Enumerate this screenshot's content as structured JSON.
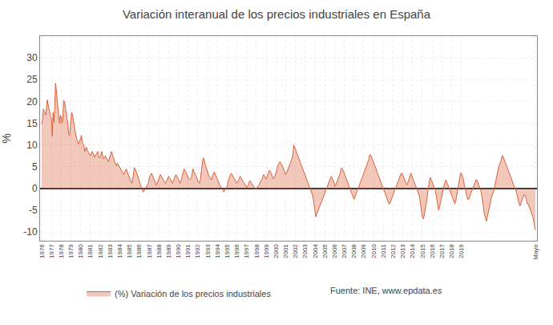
{
  "chart_data": {
    "type": "area",
    "title": "Variación interanual de los precios industriales en España",
    "ylabel": "%",
    "annotations": [
      "Fuente: INE, www.epdata.es"
    ],
    "ylim": [
      -12,
      35
    ],
    "yticks": [
      -10,
      -5,
      0,
      5,
      10,
      15,
      20,
      25,
      30
    ],
    "grid": true,
    "legend": "bottom",
    "categories": [
      "1976",
      null,
      null,
      null,
      null,
      null,
      null,
      null,
      null,
      null,
      null,
      null,
      "1977",
      null,
      null,
      null,
      null,
      null,
      null,
      null,
      null,
      null,
      null,
      null,
      "1978",
      null,
      null,
      null,
      null,
      null,
      null,
      null,
      null,
      null,
      null,
      null,
      "1979",
      null,
      null,
      null,
      null,
      null,
      null,
      null,
      null,
      null,
      null,
      null,
      "1980",
      null,
      null,
      null,
      null,
      null,
      null,
      null,
      null,
      null,
      null,
      null,
      "1981",
      null,
      null,
      null,
      null,
      null,
      null,
      null,
      null,
      null,
      null,
      null,
      "1982",
      null,
      null,
      null,
      null,
      null,
      null,
      null,
      null,
      null,
      null,
      null,
      "1983",
      null,
      null,
      null,
      null,
      null,
      null,
      null,
      null,
      null,
      null,
      null,
      "1984",
      null,
      null,
      null,
      null,
      null,
      null,
      null,
      null,
      null,
      null,
      null,
      "1985",
      null,
      null,
      null,
      null,
      null,
      null,
      null,
      null,
      null,
      null,
      null,
      "1986",
      null,
      null,
      null,
      null,
      null,
      null,
      null,
      null,
      null,
      null,
      null,
      "1987",
      null,
      null,
      null,
      null,
      null,
      null,
      null,
      null,
      null,
      null,
      null,
      "1988",
      null,
      null,
      null,
      null,
      null,
      null,
      null,
      null,
      null,
      null,
      null,
      "1989",
      null,
      null,
      null,
      null,
      null,
      null,
      null,
      null,
      null,
      null,
      null,
      "1990",
      null,
      null,
      null,
      null,
      null,
      null,
      null,
      null,
      null,
      null,
      null,
      "1991",
      null,
      null,
      null,
      null,
      null,
      null,
      null,
      null,
      null,
      null,
      null,
      "1992",
      null,
      null,
      null,
      null,
      null,
      null,
      null,
      null,
      null,
      null,
      null,
      "1993",
      null,
      null,
      null,
      null,
      null,
      null,
      null,
      null,
      null,
      null,
      null,
      "1994",
      null,
      null,
      null,
      null,
      null,
      null,
      null,
      null,
      null,
      null,
      null,
      "1995",
      null,
      null,
      null,
      null,
      null,
      null,
      null,
      null,
      null,
      null,
      null,
      "1996",
      null,
      null,
      null,
      null,
      null,
      null,
      null,
      null,
      null,
      null,
      null,
      "1997",
      null,
      null,
      null,
      null,
      null,
      null,
      null,
      null,
      null,
      null,
      null,
      "1998",
      null,
      null,
      null,
      null,
      null,
      null,
      null,
      null,
      null,
      null,
      null,
      "1999",
      null,
      null,
      null,
      null,
      null,
      null,
      null,
      null,
      null,
      null,
      null,
      "2000",
      null,
      null,
      null,
      null,
      null,
      null,
      null,
      null,
      null,
      null,
      null,
      "2001",
      null,
      null,
      null,
      null,
      null,
      null,
      null,
      null,
      null,
      null,
      null,
      "2002",
      null,
      null,
      null,
      null,
      null,
      null,
      null,
      null,
      null,
      null,
      null,
      "2003",
      null,
      null,
      null,
      null,
      null,
      null,
      null,
      null,
      null,
      null,
      null,
      "2004",
      null,
      null,
      null,
      null,
      null,
      null,
      null,
      null,
      null,
      null,
      null,
      "2005",
      null,
      null,
      null,
      null,
      null,
      null,
      null,
      null,
      null,
      null,
      null,
      "2006",
      null,
      null,
      null,
      null,
      null,
      null,
      null,
      null,
      null,
      null,
      null,
      "2007",
      null,
      null,
      null,
      null,
      null,
      null,
      null,
      null,
      null,
      null,
      null,
      "2008",
      null,
      null,
      null,
      null,
      null,
      null,
      null,
      null,
      null,
      null,
      null,
      "2009",
      null,
      null,
      null,
      null,
      null,
      null,
      null,
      null,
      null,
      null,
      null,
      "2010",
      null,
      null,
      null,
      null,
      null,
      null,
      null,
      null,
      null,
      null,
      null,
      "2011",
      null,
      null,
      null,
      null,
      null,
      null,
      null,
      null,
      null,
      null,
      null,
      "2012",
      null,
      null,
      null,
      null,
      null,
      null,
      null,
      null,
      null,
      null,
      null,
      "2013",
      null,
      null,
      null,
      null,
      null,
      null,
      null,
      null,
      null,
      null,
      null,
      "2014",
      null,
      null,
      null,
      null,
      null,
      null,
      null,
      null,
      null,
      null,
      null,
      "2015",
      null,
      null,
      null,
      null,
      null,
      null,
      null,
      null,
      null,
      null,
      null,
      "2016",
      null,
      null,
      null,
      null,
      null,
      null,
      null,
      null,
      null,
      null,
      null,
      "2017",
      null,
      null,
      null,
      null,
      null,
      null,
      null,
      null,
      null,
      null,
      null,
      "2018",
      null,
      null,
      null,
      null,
      null,
      null,
      null,
      null,
      null,
      null,
      null,
      "2019",
      null,
      null,
      null,
      null,
      null,
      null,
      null,
      null,
      null,
      null,
      null,
      null,
      null,
      null,
      null,
      null,
      null,
      null,
      null,
      null,
      null,
      null,
      null,
      null,
      null,
      null,
      null,
      null,
      null,
      null,
      null,
      null,
      null,
      null,
      null,
      null,
      null,
      null,
      null,
      null,
      null,
      null,
      null,
      null,
      null,
      null,
      null,
      null,
      null,
      null,
      null,
      null,
      null,
      null,
      null,
      null,
      null,
      null,
      null,
      null,
      null,
      null,
      null,
      null,
      null,
      null,
      null,
      null,
      null,
      null,
      null,
      null,
      null,
      null,
      null,
      null,
      null,
      null,
      null,
      null,
      null,
      null,
      null,
      null,
      null,
      null,
      null,
      null,
      null,
      null,
      "Mayo"
    ],
    "series": [
      {
        "name": "(%) Variación de los precios industriales",
        "color": "#d9603a",
        "values": [
          14.8,
          15.6,
          18.2,
          17.5,
          17.3,
          16.9,
          18.8,
          20.4,
          19.2,
          18.1,
          17.0,
          16.5,
          16.0,
          12.0,
          17.5,
          15.2,
          18.2,
          24.2,
          22.5,
          20.1,
          18.0,
          16.5,
          15.0,
          16.8,
          16.5,
          15.0,
          16.0,
          20.2,
          20.0,
          18.5,
          16.8,
          16.3,
          15.2,
          12.8,
          12.2,
          13.5,
          16.5,
          17.5,
          16.8,
          15.2,
          14.5,
          13.2,
          12.0,
          11.5,
          10.8,
          10.2,
          10.5,
          11.0,
          11.5,
          12.2,
          10.5,
          10.0,
          9.8,
          8.5,
          9.0,
          9.5,
          8.8,
          8.5,
          8.2,
          7.8,
          7.5,
          8.0,
          8.5,
          8.2,
          7.8,
          7.2,
          7.5,
          7.8,
          8.2,
          8.5,
          7.5,
          7.0,
          7.2,
          8.0,
          8.5,
          7.5,
          6.8,
          7.0,
          7.5,
          7.2,
          6.8,
          6.5,
          6.2,
          6.8,
          7.5,
          8.0,
          8.5,
          7.8,
          7.2,
          6.5,
          6.0,
          5.5,
          5.2,
          5.8,
          5.5,
          5.2,
          5.0,
          4.5,
          4.2,
          3.8,
          3.5,
          3.2,
          3.8,
          4.2,
          4.5,
          4.0,
          3.5,
          2.8,
          2.5,
          2.0,
          1.5,
          1.2,
          2.5,
          3.5,
          4.8,
          4.5,
          4.0,
          3.5,
          2.8,
          2.2,
          1.8,
          1.2,
          0.5,
          -0.2,
          -0.5,
          -0.8,
          -0.5,
          -0.2,
          0.2,
          0.5,
          0.8,
          1.2,
          2.2,
          2.8,
          3.2,
          3.5,
          3.0,
          2.5,
          2.0,
          1.5,
          1.0,
          0.8,
          1.2,
          1.8,
          2.2,
          2.8,
          3.2,
          2.8,
          2.5,
          2.2,
          1.8,
          1.5,
          1.2,
          1.5,
          2.0,
          2.5,
          2.8,
          2.5,
          2.2,
          1.8,
          1.5,
          1.2,
          1.8,
          2.2,
          2.8,
          3.2,
          2.8,
          2.5,
          2.2,
          1.8,
          1.2,
          1.5,
          2.2,
          3.0,
          3.5,
          4.5,
          4.2,
          3.8,
          3.2,
          2.8,
          2.5,
          2.2,
          2.0,
          2.2,
          2.5,
          3.5,
          4.5,
          4.0,
          3.5,
          3.0,
          2.5,
          2.0,
          1.8,
          1.5,
          1.2,
          2.0,
          3.5,
          5.5,
          6.5,
          7.0,
          6.5,
          5.5,
          4.8,
          4.2,
          3.8,
          3.2,
          2.8,
          2.5,
          2.2,
          2.0,
          2.8,
          3.5,
          3.8,
          3.5,
          3.0,
          2.5,
          2.0,
          1.5,
          1.2,
          0.8,
          0.5,
          0.2,
          -0.2,
          -0.5,
          -0.8,
          -0.5,
          -0.2,
          0.2,
          0.5,
          1.5,
          2.2,
          2.8,
          3.2,
          3.5,
          3.2,
          2.8,
          2.5,
          2.2,
          1.8,
          1.5,
          1.2,
          1.5,
          2.0,
          2.5,
          2.8,
          2.5,
          2.0,
          1.8,
          1.5,
          1.2,
          0.8,
          0.5,
          0.2,
          0.5,
          0.8,
          1.5,
          1.8,
          1.5,
          1.2,
          0.8,
          0.5,
          0.2,
          0.0,
          -0.2,
          0.0,
          0.2,
          0.5,
          0.8,
          1.2,
          1.5,
          1.8,
          2.2,
          2.8,
          3.2,
          2.8,
          2.5,
          2.2,
          2.8,
          3.2,
          3.8,
          4.2,
          4.0,
          3.5,
          2.8,
          2.5,
          2.2,
          2.5,
          3.0,
          3.5,
          4.5,
          5.0,
          5.5,
          5.8,
          6.2,
          5.8,
          5.5,
          5.2,
          4.8,
          4.2,
          3.8,
          3.2,
          3.5,
          4.0,
          4.5,
          5.0,
          5.5,
          6.0,
          6.5,
          7.0,
          8.0,
          10.0,
          9.5,
          9.0,
          8.5,
          8.0,
          7.5,
          7.0,
          6.5,
          6.0,
          5.5,
          5.0,
          4.5,
          4.0,
          3.5,
          3.0,
          2.5,
          2.0,
          1.5,
          1.0,
          0.5,
          0.0,
          -0.5,
          -1.0,
          -1.5,
          -2.5,
          -4.0,
          -5.5,
          -6.5,
          -6.0,
          -5.5,
          -5.0,
          -4.5,
          -4.0,
          -3.5,
          -3.0,
          -2.5,
          -2.0,
          -1.5,
          -1.0,
          -0.5,
          0.0,
          0.5,
          1.0,
          1.5,
          2.0,
          2.5,
          2.8,
          2.5,
          2.0,
          1.5,
          1.0,
          0.5,
          1.0,
          1.5,
          2.0,
          2.5,
          2.8,
          3.5,
          4.5,
          4.8,
          4.5,
          4.0,
          3.5,
          3.0,
          2.5,
          2.0,
          1.5,
          1.0,
          0.5,
          0.0,
          -0.5,
          -1.0,
          -1.5,
          -2.0,
          -2.5,
          -2.0,
          -1.5,
          -1.0,
          -0.5,
          0.0,
          0.5,
          1.0,
          1.5,
          2.0,
          2.5,
          3.0,
          3.5,
          4.0,
          4.5,
          5.0,
          5.5,
          6.0,
          6.5,
          7.5,
          7.8,
          7.5,
          7.0,
          6.5,
          6.0,
          5.5,
          5.0,
          4.5,
          4.0,
          3.5,
          3.0,
          2.5,
          2.0,
          1.5,
          1.0,
          0.5,
          0.0,
          -0.5,
          -1.0,
          -1.5,
          -2.0,
          -2.5,
          -3.0,
          -3.5,
          -3.5,
          -3.0,
          -2.5,
          -2.0,
          -1.5,
          -1.0,
          -0.5,
          0.0,
          0.5,
          1.0,
          1.5,
          2.0,
          2.5,
          3.0,
          3.5,
          3.5,
          3.0,
          2.5,
          2.0,
          1.5,
          1.0,
          0.8,
          1.2,
          1.8,
          2.5,
          3.0,
          3.5,
          3.0,
          2.5,
          2.0,
          1.5,
          1.0,
          0.5,
          0.0,
          -0.5,
          -1.0,
          -1.5,
          -2.5,
          -4.0,
          -5.5,
          -6.5,
          -7.0,
          -6.5,
          -5.5,
          -4.5,
          -3.5,
          -2.0,
          -0.5,
          1.0,
          2.0,
          2.5,
          2.0,
          1.5,
          1.0,
          0.5,
          0.0,
          -0.5,
          -1.5,
          -2.5,
          -3.5,
          -5.0,
          -4.5,
          -3.5,
          -2.5,
          -1.5,
          -0.5,
          0.5,
          1.0,
          1.5,
          2.0,
          1.5,
          1.0,
          0.5,
          0.0,
          -0.5,
          -1.0,
          -1.5,
          -2.0,
          -2.5,
          -3.0,
          -3.5,
          -3.0,
          -2.0,
          -1.0,
          0.0,
          1.5,
          2.5,
          3.5,
          3.5,
          3.0,
          2.5,
          1.5,
          0.5,
          -0.5,
          -1.5,
          -2.0,
          -2.5,
          -2.5,
          -2.0,
          -1.5,
          -1.0,
          -0.5,
          0.0,
          0.5,
          1.0,
          1.5,
          2.0,
          2.0,
          1.5,
          1.0,
          0.5,
          0.0,
          -0.5,
          -1.5,
          -2.5,
          -4.0,
          -5.5,
          -6.5,
          -7.0,
          -7.5,
          -6.5,
          -5.5,
          -4.5,
          -3.5,
          -2.5,
          -2.0,
          -1.5,
          -1.0,
          -0.5,
          0.5,
          1.5,
          2.5,
          3.5,
          4.5,
          5.0,
          5.5,
          6.0,
          6.5,
          7.5,
          7.5,
          7.0,
          6.5,
          6.0,
          5.5,
          5.0,
          4.5,
          4.0,
          3.5,
          3.0,
          2.5,
          2.0,
          1.5,
          1.0,
          0.5,
          0.0,
          -0.5,
          -1.0,
          -2.0,
          -3.0,
          -3.5,
          -4.0,
          -3.5,
          -3.0,
          -2.5,
          -2.0,
          -1.5,
          -1.5,
          -2.0,
          -2.5,
          -3.5,
          -3.5,
          -4.0,
          -4.5,
          -5.0,
          -5.5,
          -6.0,
          -6.5,
          -7.5,
          -8.5,
          -9.5
        ]
      }
    ]
  }
}
